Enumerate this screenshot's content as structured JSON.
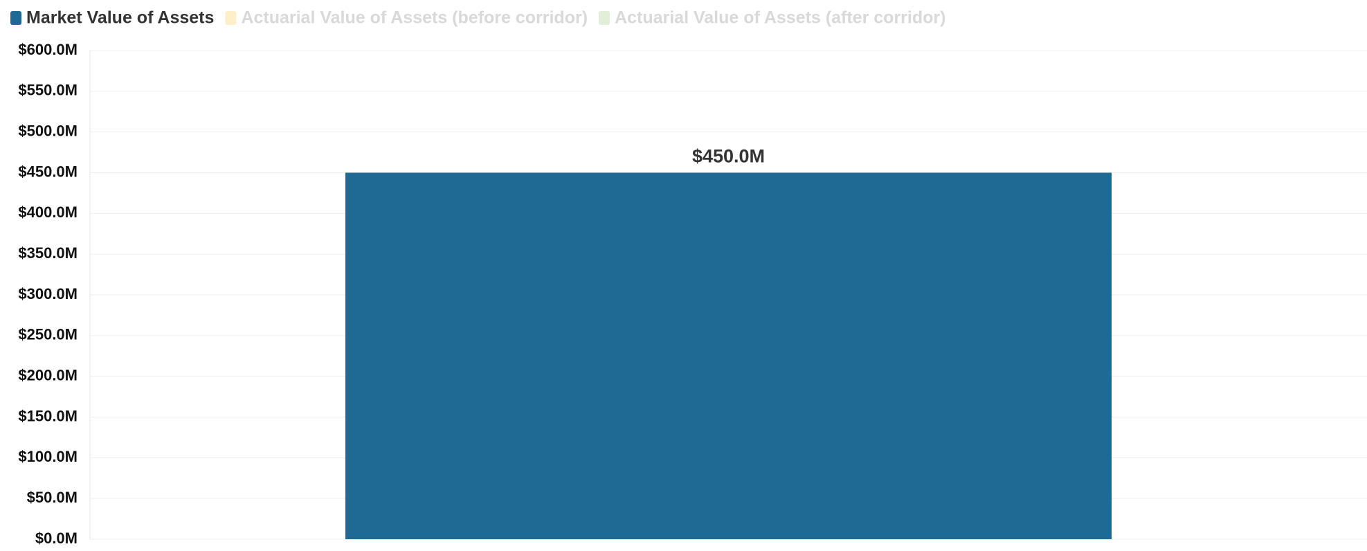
{
  "chart_data": {
    "type": "bar",
    "categories": [
      null
    ],
    "series": [
      {
        "name": "Market Value of Assets",
        "color": "#1f6995",
        "values": [
          450
        ],
        "value_labels": [
          "$450.0M"
        ]
      },
      {
        "name": "Actuarial Value of Assets (before corridor)",
        "color": "#fcefc9",
        "values": [
          null
        ],
        "hidden": true
      },
      {
        "name": "Actuarial Value of Assets (after corridor)",
        "color": "#e1efd9",
        "values": [
          null
        ],
        "hidden": true
      }
    ],
    "ylim": [
      0,
      600
    ],
    "yticks": [
      {
        "value": 0,
        "label": "$0.0M"
      },
      {
        "value": 50,
        "label": "$50.0M"
      },
      {
        "value": 100,
        "label": "$100.0M"
      },
      {
        "value": 150,
        "label": "$150.0M"
      },
      {
        "value": 200,
        "label": "$200.0M"
      },
      {
        "value": 250,
        "label": "$250.0M"
      },
      {
        "value": 300,
        "label": "$300.0M"
      },
      {
        "value": 350,
        "label": "$350.0M"
      },
      {
        "value": 400,
        "label": "$400.0M"
      },
      {
        "value": 450,
        "label": "$450.0M"
      },
      {
        "value": 500,
        "label": "$500.0M"
      },
      {
        "value": 550,
        "label": "$550.0M"
      },
      {
        "value": 600,
        "label": "$600.0M"
      }
    ],
    "grid": true,
    "legend": "top-left"
  }
}
